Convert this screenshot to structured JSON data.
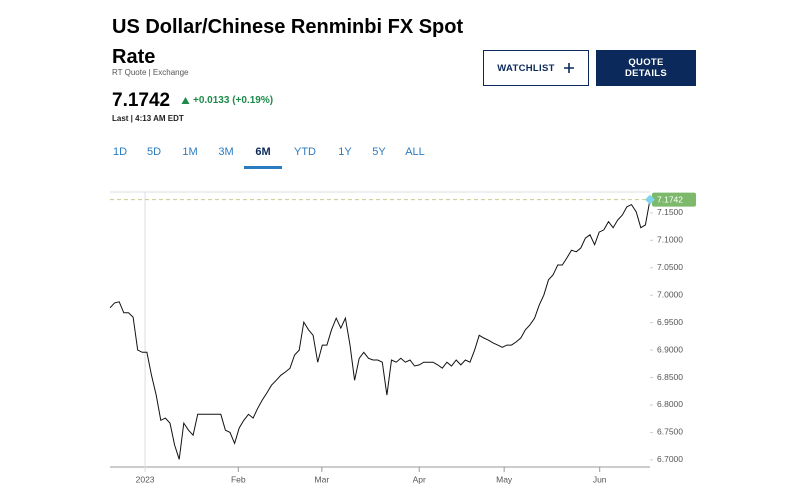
{
  "header": {
    "title": "US Dollar/Chinese Renminbi FX Spot Rate",
    "subtitle": "RT Quote | Exchange",
    "change": "+0.0133 (+0.19%)",
    "last": "Last | 4:13 AM EDT"
  },
  "buttons": {
    "watchlist": "WATCHLIST",
    "quote_details": "QUOTE DETAILS"
  },
  "tabs": [
    "1D",
    "5D",
    "1M",
    "3M",
    "6M",
    "YTD",
    "1Y",
    "5Y",
    "ALL"
  ],
  "active_tab": "6M",
  "chart_data": {
    "type": "line",
    "last_price": 7.1742,
    "series": [
      {
        "color": "#111111",
        "values": [
          6.977,
          6.986,
          6.988,
          6.968,
          6.968,
          6.96,
          6.9,
          6.896,
          6.896,
          6.854,
          6.818,
          6.772,
          6.776,
          6.767,
          6.727,
          6.701,
          6.767,
          6.754,
          6.745,
          6.783,
          6.783,
          6.783,
          6.783,
          6.783,
          6.783,
          6.754,
          6.75,
          6.73,
          6.758,
          6.772,
          6.783,
          6.776,
          6.794,
          6.809,
          6.822,
          6.836,
          6.845,
          6.854,
          6.86,
          6.867,
          6.891,
          6.9,
          6.951,
          6.937,
          6.927,
          6.878,
          6.909,
          6.909,
          6.937,
          6.958,
          6.94,
          6.958,
          6.909,
          6.845,
          6.885,
          6.896,
          6.885,
          6.882,
          6.882,
          6.878,
          6.818,
          6.882,
          6.878,
          6.885,
          6.878,
          6.882,
          6.871,
          6.873,
          6.878,
          6.878,
          6.878,
          6.873,
          6.867,
          6.878,
          6.871,
          6.882,
          6.873,
          6.882,
          6.878,
          6.9,
          6.927,
          6.922,
          6.918,
          6.913,
          6.909,
          6.905,
          6.909,
          6.909,
          6.915,
          6.922,
          6.937,
          6.946,
          6.958,
          6.982,
          7.0,
          7.028,
          7.037,
          7.055,
          7.055,
          7.068,
          7.082,
          7.079,
          7.086,
          7.104,
          7.11,
          7.092,
          7.115,
          7.119,
          7.134,
          7.123,
          7.137,
          7.146,
          7.161,
          7.165,
          7.152,
          7.123,
          7.128,
          7.174
        ]
      }
    ],
    "xlim": [
      0,
      117
    ],
    "xticks": [
      {
        "value": 7.6,
        "label": "2023"
      },
      {
        "value": 27.8,
        "label": "Feb"
      },
      {
        "value": 45.9,
        "label": "Mar"
      },
      {
        "value": 67,
        "label": "Apr"
      },
      {
        "value": 85.4,
        "label": "May"
      },
      {
        "value": 106.1,
        "label": "Jun"
      }
    ],
    "ylim": [
      6.687,
      7.188
    ],
    "yticks": [
      {
        "value": 6.7,
        "label": "6.7000"
      },
      {
        "value": 6.75,
        "label": "6.7500"
      },
      {
        "value": 6.8,
        "label": "6.8000"
      },
      {
        "value": 6.85,
        "label": "6.8500"
      },
      {
        "value": 6.9,
        "label": "6.9000"
      },
      {
        "value": 6.95,
        "label": "6.9500"
      },
      {
        "value": 7.0,
        "label": "7.0000"
      },
      {
        "value": 7.05,
        "label": "7.0500"
      },
      {
        "value": 7.1,
        "label": "7.1000"
      },
      {
        "value": 7.15,
        "label": "7.1500"
      }
    ],
    "badge_color": "#7cb96b",
    "grid": false
  }
}
